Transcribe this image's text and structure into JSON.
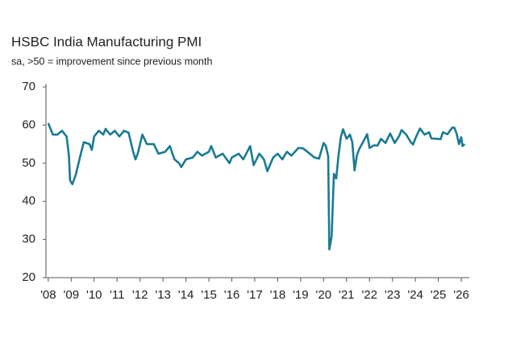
{
  "chart_data": {
    "type": "line",
    "title": "HSBC India Manufacturing PMI",
    "subtitle": "sa, >50 = improvement since previous month",
    "x": [
      2008.0,
      2008.2,
      2008.4,
      2008.6,
      2008.8,
      2008.9,
      2008.95,
      2009.05,
      2009.2,
      2009.4,
      2009.55,
      2009.8,
      2009.9,
      2010.0,
      2010.2,
      2010.4,
      2010.5,
      2010.7,
      2010.9,
      2011.1,
      2011.3,
      2011.5,
      2011.7,
      2011.8,
      2011.9,
      2012.1,
      2012.3,
      2012.6,
      2012.8,
      2013.1,
      2013.3,
      2013.5,
      2013.7,
      2013.8,
      2014.0,
      2014.3,
      2014.5,
      2014.7,
      2015.0,
      2015.1,
      2015.3,
      2015.6,
      2015.9,
      2016.0,
      2016.3,
      2016.5,
      2016.8,
      2016.95,
      2017.2,
      2017.4,
      2017.55,
      2017.8,
      2018.0,
      2018.2,
      2018.4,
      2018.6,
      2018.9,
      2019.1,
      2019.4,
      2019.6,
      2019.8,
      2020.0,
      2020.1,
      2020.2,
      2020.25,
      2020.35,
      2020.45,
      2020.55,
      2020.65,
      2020.75,
      2020.85,
      2021.0,
      2021.15,
      2021.25,
      2021.35,
      2021.45,
      2021.55,
      2021.75,
      2021.9,
      2022.0,
      2022.2,
      2022.35,
      2022.5,
      2022.7,
      2022.9,
      2023.1,
      2023.3,
      2023.4,
      2023.6,
      2023.8,
      2023.9,
      2024.0,
      2024.2,
      2024.4,
      2024.6,
      2024.7,
      2024.9,
      2025.1,
      2025.2,
      2025.4,
      2025.6,
      2025.7,
      2025.8,
      2025.9,
      2026.0,
      2026.05,
      2026.15
    ],
    "series": [
      {
        "name": "HSBC India Manufacturing PMI",
        "color": "#1a7a94",
        "values": [
          60.5,
          57.5,
          57.5,
          58.5,
          57,
          52,
          45.5,
          44.5,
          47,
          52,
          55.5,
          55,
          53.5,
          57,
          58.5,
          57.5,
          59,
          57.5,
          58.5,
          57,
          58.5,
          58,
          53,
          51,
          52.5,
          57.5,
          55,
          55,
          52.5,
          53,
          54.5,
          51,
          50,
          49,
          51,
          51.5,
          53,
          52,
          53,
          54.5,
          51.5,
          52.5,
          50,
          51.5,
          52.5,
          51,
          54.5,
          49.5,
          52.5,
          51,
          47.9,
          51.5,
          52.5,
          51,
          53,
          52,
          54,
          53.9,
          52.5,
          51.5,
          51.2,
          55.3,
          54.5,
          51.8,
          27.4,
          30.8,
          47.2,
          46,
          52,
          56.8,
          58.9,
          56.4,
          57.5,
          55.5,
          48.1,
          52,
          53.7,
          55.9,
          57.6,
          54,
          54.7,
          54.6,
          56.4,
          55.3,
          57.8,
          55.3,
          57.2,
          58.7,
          57.5,
          55.5,
          54.9,
          56.5,
          59.1,
          57.5,
          58.1,
          56.5,
          56.4,
          56.3,
          58.1,
          57.6,
          59.3,
          59.3,
          57.7,
          55,
          56.8,
          54.5,
          55
        ]
      }
    ],
    "xlim": [
      2007.9,
      2026.35
    ],
    "xticks": [
      {
        "value": 2008,
        "label": "'08"
      },
      {
        "value": 2009,
        "label": "'09"
      },
      {
        "value": 2010,
        "label": "'10"
      },
      {
        "value": 2011,
        "label": "'11"
      },
      {
        "value": 2012,
        "label": "'12"
      },
      {
        "value": 2013,
        "label": "'13"
      },
      {
        "value": 2014,
        "label": "'14"
      },
      {
        "value": 2015,
        "label": "'15"
      },
      {
        "value": 2016,
        "label": "'16"
      },
      {
        "value": 2017,
        "label": "'17"
      },
      {
        "value": 2018,
        "label": "'18"
      },
      {
        "value": 2019,
        "label": "'19"
      },
      {
        "value": 2020,
        "label": "'20"
      },
      {
        "value": 2021,
        "label": "'21"
      },
      {
        "value": 2022,
        "label": "'22"
      },
      {
        "value": 2023,
        "label": "'23"
      },
      {
        "value": 2024,
        "label": "'24"
      },
      {
        "value": 2025,
        "label": "'25"
      },
      {
        "value": 2026,
        "label": "'26"
      }
    ],
    "ylim": [
      20,
      70
    ],
    "yticks": [
      20,
      30,
      40,
      50,
      60,
      70
    ],
    "grid": false
  }
}
